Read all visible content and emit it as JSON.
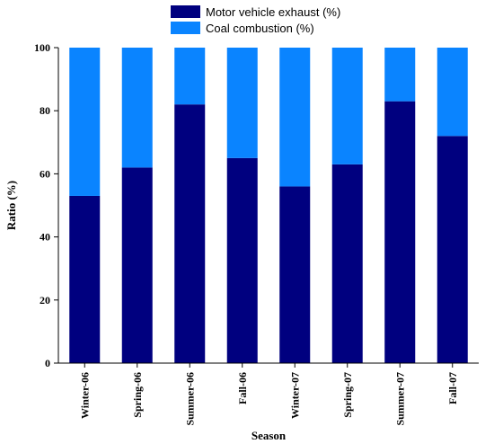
{
  "chart_data": {
    "type": "bar",
    "stacked": true,
    "title": "",
    "xlabel": "Season",
    "ylabel": "Ratio (%)",
    "ylim": [
      0,
      100
    ],
    "yticks": [
      0,
      20,
      40,
      60,
      80,
      100
    ],
    "categories": [
      "Winter-06",
      "Spring-06",
      "Summer-06",
      "Fall-06",
      "Winter-07",
      "Spring-07",
      "Summer-07",
      "Fall-07"
    ],
    "series": [
      {
        "name": "Motor vehicle exhaust (%)",
        "color": "#00007f",
        "values": [
          53,
          62,
          82,
          65,
          56,
          63,
          83,
          72
        ]
      },
      {
        "name": "Coal combustion (%)",
        "color": "#0a84ff",
        "values": [
          47,
          38,
          18,
          35,
          44,
          37,
          17,
          28
        ]
      }
    ],
    "legend_position": "top-center",
    "grid": false
  }
}
